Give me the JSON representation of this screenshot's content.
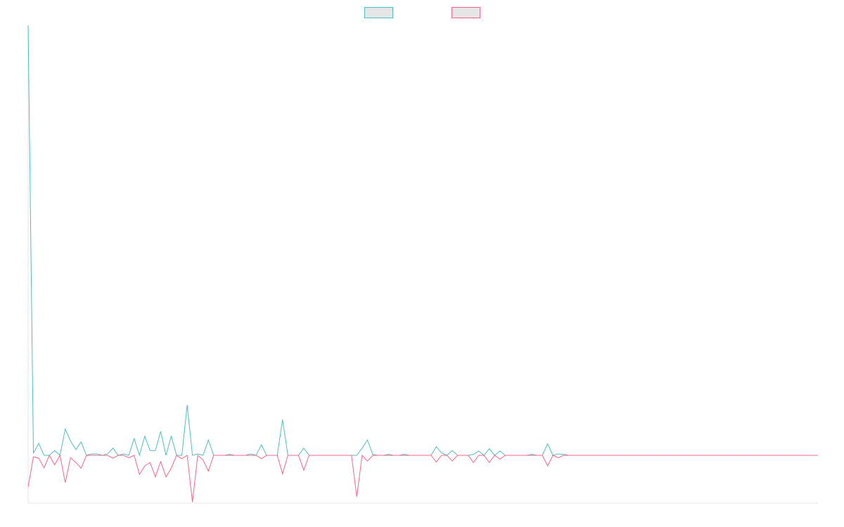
{
  "chart_data": {
    "type": "line",
    "legend": "top",
    "grid": false,
    "ylim": [
      -10,
      90
    ],
    "series": [
      {
        "color": "#4bc0c0",
        "values": [
          90,
          0.5,
          2.5,
          0,
          0,
          1,
          0,
          5.5,
          3,
          1.2,
          2.8,
          0,
          0.3,
          0.3,
          0,
          0.3,
          1.5,
          0,
          0.3,
          0,
          3.5,
          0,
          4,
          1,
          1,
          5,
          0,
          4,
          0,
          0,
          10.5,
          0,
          0.3,
          0,
          3.2,
          0,
          0,
          0,
          0.2,
          0,
          0,
          0,
          0.3,
          0,
          2.2,
          0,
          0,
          0,
          7.5,
          0,
          0,
          0,
          1.5,
          0,
          0,
          0,
          0,
          0,
          0,
          0,
          0,
          0,
          0,
          1.5,
          3.2,
          0.2,
          0,
          0,
          0.2,
          0,
          0,
          0.2,
          0,
          0,
          0,
          0,
          0,
          1.8,
          0.5,
          0,
          1,
          0,
          0,
          0,
          0.2,
          0.9,
          0,
          1.4,
          0,
          0.9,
          0,
          0,
          0,
          0,
          0,
          0.2,
          0,
          0,
          2.4,
          0,
          0.3,
          0.2,
          0,
          0,
          0,
          0,
          0,
          0,
          0,
          0,
          0,
          0,
          0,
          0,
          0,
          0,
          0,
          0,
          0,
          0,
          0,
          0,
          0,
          0,
          0,
          0,
          0,
          0,
          0,
          0,
          0,
          0,
          0,
          0,
          0,
          0,
          0,
          0,
          0,
          0,
          0,
          0,
          0,
          0,
          0,
          0,
          0,
          0,
          0,
          0
        ]
      },
      {
        "color": "#ff6384",
        "values": [
          -6.6,
          -0.3,
          -0.6,
          -2.6,
          0,
          -2,
          0,
          -5.7,
          -0.5,
          -1.5,
          -2.7,
          0,
          0,
          0,
          0,
          0,
          -0.6,
          0,
          0,
          -0.5,
          0,
          -4,
          -2.2,
          -1.5,
          -4.5,
          -1.3,
          -4.5,
          -2.7,
          0,
          -0.7,
          0,
          -9.8,
          0,
          -1,
          -3.3,
          0,
          0,
          0,
          0,
          0,
          0,
          0,
          0,
          0,
          -0.7,
          0,
          0,
          0,
          -3.9,
          0,
          0,
          0,
          -3.1,
          0,
          0,
          0,
          0,
          0,
          0,
          0,
          0,
          0,
          -8.7,
          0,
          -1.2,
          0,
          0,
          0,
          0,
          0,
          0,
          0,
          0,
          0,
          0,
          0,
          0,
          -1.4,
          0,
          0,
          -1.2,
          0,
          0,
          0,
          -1.5,
          0,
          0,
          -1.5,
          0,
          -0.8,
          0,
          0,
          0,
          0,
          0,
          0,
          0,
          0,
          -2.2,
          0,
          -0.5,
          0,
          0,
          0,
          0,
          0,
          0,
          0,
          0,
          0,
          0,
          0,
          0,
          0,
          0,
          0,
          0,
          0,
          0,
          0,
          0,
          0,
          0,
          0,
          0,
          0,
          0,
          0,
          0,
          0,
          0,
          0,
          0,
          0,
          0,
          0,
          0,
          0,
          0,
          0,
          0,
          0,
          0,
          0,
          0,
          0,
          0,
          0,
          0,
          0
        ]
      }
    ]
  }
}
